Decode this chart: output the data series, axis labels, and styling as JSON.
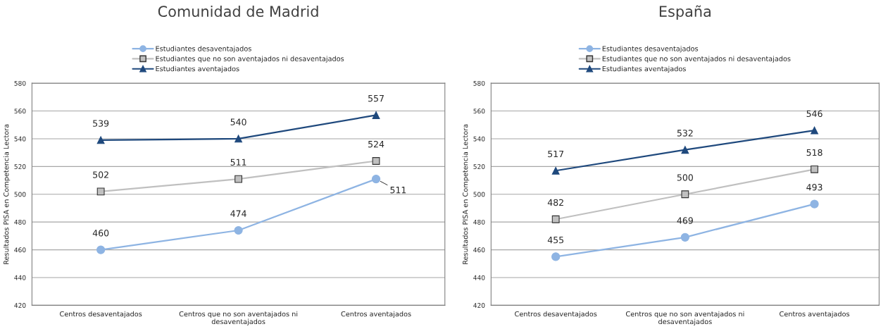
{
  "chart_data": [
    {
      "type": "line",
      "title": "Comunidad de Madrid",
      "ylabel": "Resultados PISA en Competencia Lectora",
      "categories": [
        "Centros desaventajados",
        "Centros que no son aventajados ni desaventajados",
        "Centros aventajados"
      ],
      "series": [
        {
          "name": "Estudiantes desaventajados",
          "color": "#8eb4e3",
          "marker": "circle",
          "values": [
            460,
            474,
            511
          ]
        },
        {
          "name": "Estudiantes que no son aventajados ni desaventajados",
          "color": "#c0c0c0",
          "marker": "square",
          "values": [
            502,
            511,
            524
          ]
        },
        {
          "name": "Estudiantes aventajados",
          "color": "#1f497d",
          "marker": "triangle",
          "values": [
            539,
            540,
            557
          ]
        }
      ],
      "ylim": [
        420,
        580
      ],
      "yticks": [
        420,
        440,
        460,
        480,
        500,
        520,
        540,
        560,
        580
      ],
      "grid": "y",
      "legend": "top",
      "data_labels": true
    },
    {
      "type": "line",
      "title": "España",
      "ylabel": "Resultados PISA en Competencia Lectora",
      "categories": [
        "Centros desaventajados",
        "Centros que no son aventajados ni desaventajados",
        "Centros aventajados"
      ],
      "series": [
        {
          "name": "Estudiantes desaventajados",
          "color": "#8eb4e3",
          "marker": "circle",
          "values": [
            455,
            469,
            493
          ]
        },
        {
          "name": "Estudiantes que no son aventajados ni desaventajados",
          "color": "#c0c0c0",
          "marker": "square",
          "values": [
            482,
            500,
            518
          ]
        },
        {
          "name": "Estudiantes aventajados",
          "color": "#1f497d",
          "marker": "triangle",
          "values": [
            517,
            532,
            546
          ]
        }
      ],
      "ylim": [
        420,
        580
      ],
      "yticks": [
        420,
        440,
        460,
        480,
        500,
        520,
        540,
        560,
        580
      ],
      "grid": "y",
      "legend": "top",
      "data_labels": true
    }
  ]
}
